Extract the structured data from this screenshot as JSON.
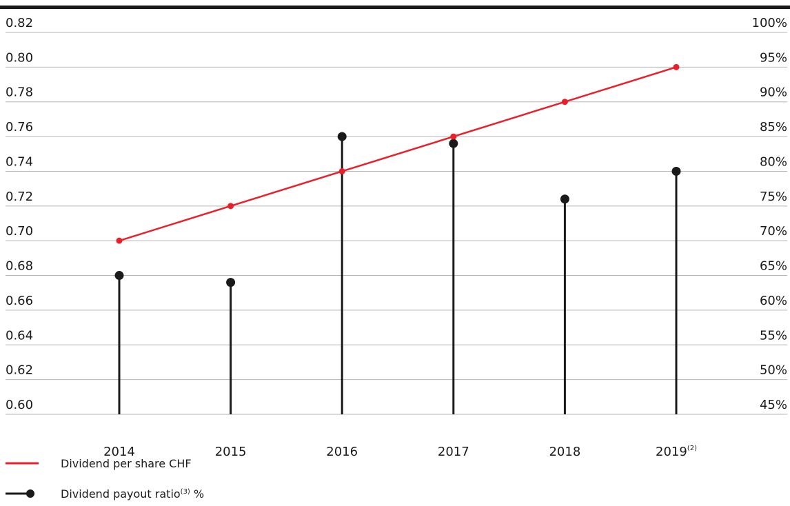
{
  "chart_data": {
    "type": "line",
    "categories": [
      "2014",
      "2015",
      "2016",
      "2017",
      "2018",
      "2019"
    ],
    "category_superscripts": [
      "",
      "",
      "",
      "",
      "",
      "(2)"
    ],
    "series": [
      {
        "name": "Dividend per share CHF",
        "kind": "line",
        "axis": "left",
        "color": "#e8202a",
        "values": [
          0.7,
          0.72,
          0.74,
          0.76,
          0.78,
          0.8
        ]
      },
      {
        "name": "Dividend payout ratio",
        "name_superscript": "(3)",
        "name_suffix": " %",
        "kind": "lollipop",
        "axis": "right",
        "color": "#1a1a1a",
        "values": [
          65,
          64,
          85,
          84,
          76,
          80
        ]
      }
    ],
    "y_left": {
      "ylim": [
        0.6,
        0.82
      ],
      "ticks": [
        "0.60",
        "0.62",
        "0.64",
        "0.66",
        "0.68",
        "0.70",
        "0.72",
        "0.74",
        "0.76",
        "0.78",
        "0.80",
        "0.82"
      ]
    },
    "y_right": {
      "ylim": [
        45,
        100
      ],
      "ticks": [
        "45%",
        "50%",
        "55%",
        "60%",
        "65%",
        "70%",
        "75%",
        "80%",
        "85%",
        "90%",
        "95%",
        "100%"
      ]
    },
    "grid": true,
    "legend_position": "bottom-left"
  }
}
